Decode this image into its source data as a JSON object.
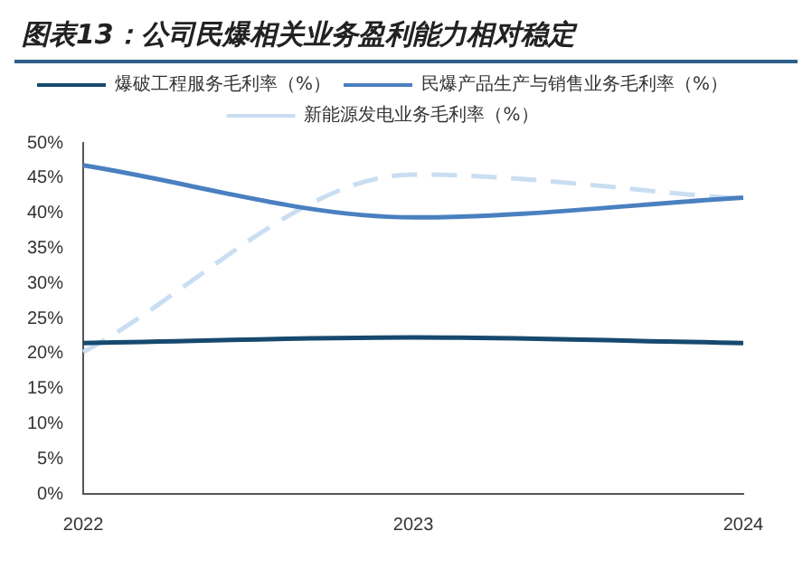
{
  "chart_data": {
    "type": "line",
    "title": "图表13：公司民爆相关业务盈利能力相对稳定",
    "categories": [
      "2022",
      "2023",
      "2024"
    ],
    "series": [
      {
        "name": "爆破工程服务毛利率（%）",
        "color": "#17496e",
        "values": [
          21.5,
          22.3,
          21.5
        ]
      },
      {
        "name": "民爆产品生产与销售业务毛利率（%）",
        "color": "#4a80c0",
        "values": [
          46.8,
          39.4,
          42.2
        ]
      },
      {
        "name": "新能源发电业务毛利率（%）",
        "color": "#c9def2",
        "values": [
          20.2,
          45.5,
          42.0
        ],
        "line_style": "dashed"
      }
    ],
    "ylim": [
      0,
      50
    ],
    "yticks": [
      {
        "value": 0,
        "label": "0%"
      },
      {
        "value": 5,
        "label": "5%"
      },
      {
        "value": 10,
        "label": "10%"
      },
      {
        "value": 15,
        "label": "15%"
      },
      {
        "value": 20,
        "label": "20%"
      },
      {
        "value": 25,
        "label": "25%"
      },
      {
        "value": 30,
        "label": "30%"
      },
      {
        "value": 35,
        "label": "35%"
      },
      {
        "value": 40,
        "label": "40%"
      },
      {
        "value": 45,
        "label": "45%"
      },
      {
        "value": 50,
        "label": "50%"
      }
    ],
    "grid": false,
    "legend": "top",
    "marker": "none",
    "line_style": "solid"
  }
}
